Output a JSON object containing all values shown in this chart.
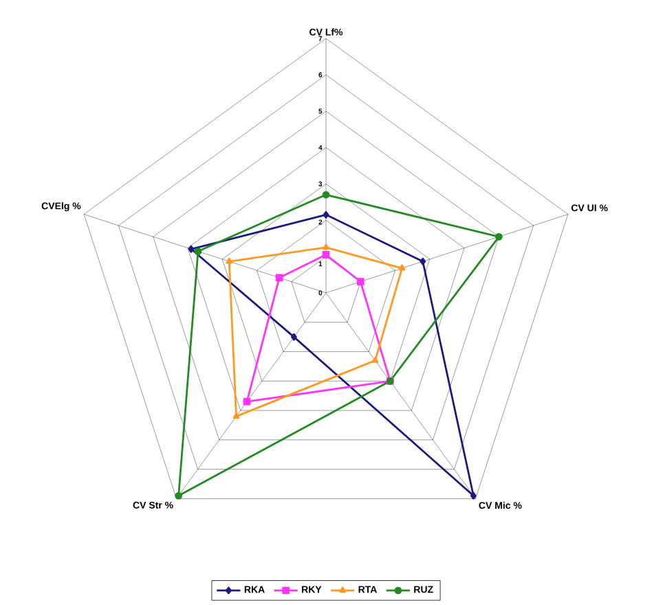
{
  "chart_data": {
    "type": "radar",
    "categories": [
      "CV Lf%",
      "CV UI %",
      "CV Mic %",
      "CV Str %",
      "CVElg %"
    ],
    "ylim": [
      0,
      7
    ],
    "yticks": [
      0,
      1,
      2,
      3,
      4,
      5,
      6,
      7
    ],
    "grid": true,
    "legend": "bottom",
    "series": [
      {
        "name": "RKA",
        "color": "#1a1a80",
        "marker": "diamond",
        "values": [
          2.15,
          2.8,
          6.9,
          1.5,
          3.9
        ]
      },
      {
        "name": "RKY",
        "color": "#ff33ff",
        "marker": "square",
        "values": [
          1.05,
          1.0,
          3.0,
          3.7,
          1.35
        ]
      },
      {
        "name": "RTA",
        "color": "#ff9922",
        "marker": "triangle",
        "values": [
          1.25,
          2.2,
          2.3,
          4.2,
          2.8
        ]
      },
      {
        "name": "RUZ",
        "color": "#228b22",
        "marker": "circle",
        "values": [
          2.7,
          5.0,
          3.0,
          6.9,
          3.7
        ]
      }
    ]
  }
}
